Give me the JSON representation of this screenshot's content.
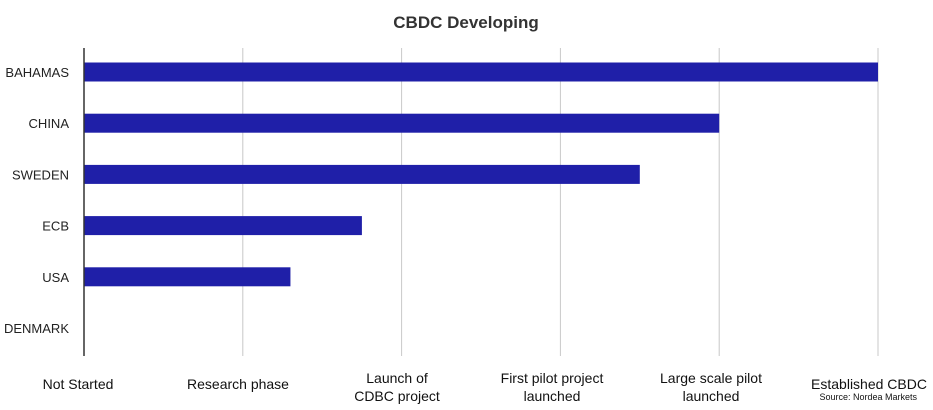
{
  "chart_data": {
    "type": "bar",
    "orientation": "horizontal",
    "title": "CBDC Developing",
    "categories": [
      "BAHAMAS",
      "CHINA",
      "SWEDEN",
      "ECB",
      "USA",
      "DENMARK"
    ],
    "values": [
      5,
      4,
      3.5,
      1.75,
      1.3,
      0
    ],
    "x_ticks": [
      "Not Started",
      "Research phase",
      "Launch of\nCDBC project",
      "First pilot project\nlaunched",
      "Large scale pilot\nlaunched",
      "Established CBDC"
    ],
    "xlim": [
      0,
      5
    ],
    "grid": true,
    "legend": "none",
    "source": "Source: Nordea Markets",
    "colors": {
      "bar": "#1f1fa8",
      "grid": "#c8c8c8",
      "axis": "#333333"
    }
  }
}
